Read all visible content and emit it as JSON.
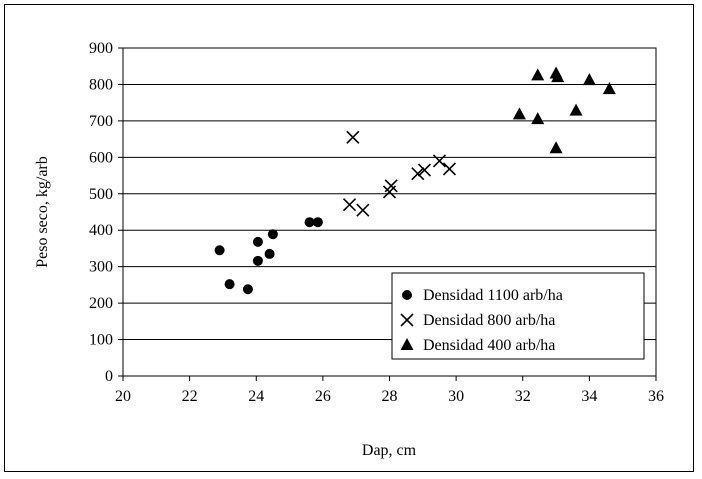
{
  "chart_data": {
    "type": "scatter",
    "title": "",
    "xlabel": "Dap, cm",
    "ylabel": "Peso seco, kg/arb",
    "xlim": [
      20,
      36
    ],
    "ylim": [
      0,
      900
    ],
    "xticks": [
      20,
      22,
      24,
      26,
      28,
      30,
      32,
      34,
      36
    ],
    "yticks": [
      0,
      100,
      200,
      300,
      400,
      500,
      600,
      700,
      800,
      900
    ],
    "grid": "horizontal",
    "legend_position": "bottom-right",
    "series": [
      {
        "name": "Densidad 1100 arb/ha",
        "marker": "circle",
        "color": "#000000",
        "points": [
          [
            22.9,
            345
          ],
          [
            23.2,
            252
          ],
          [
            23.75,
            238
          ],
          [
            24.05,
            368
          ],
          [
            24.05,
            316
          ],
          [
            24.4,
            335
          ],
          [
            24.5,
            389
          ],
          [
            25.6,
            422
          ],
          [
            25.85,
            422
          ]
        ]
      },
      {
        "name": "Densidad 800 arb/ha",
        "marker": "cross",
        "color": "#000000",
        "points": [
          [
            26.9,
            655
          ],
          [
            26.8,
            470
          ],
          [
            27.2,
            455
          ],
          [
            28.0,
            505
          ],
          [
            28.05,
            522
          ],
          [
            28.85,
            555
          ],
          [
            29.05,
            565
          ],
          [
            29.5,
            590
          ],
          [
            29.8,
            568
          ]
        ]
      },
      {
        "name": "Densidad 400 arb/ha",
        "marker": "triangle",
        "color": "#000000",
        "points": [
          [
            31.9,
            718
          ],
          [
            32.45,
            825
          ],
          [
            32.45,
            705
          ],
          [
            33.0,
            830
          ],
          [
            33.05,
            820
          ],
          [
            33.0,
            625
          ],
          [
            33.6,
            728
          ],
          [
            34.0,
            812
          ],
          [
            34.6,
            787
          ]
        ]
      }
    ]
  }
}
